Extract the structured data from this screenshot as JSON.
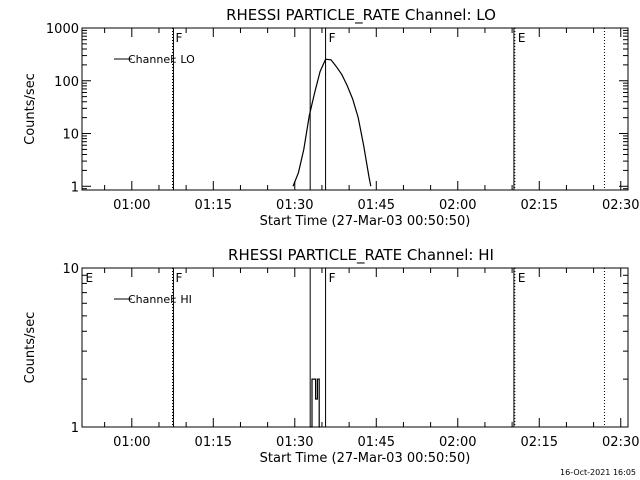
{
  "colors": {
    "background": "#ffffff",
    "foreground": "#000000"
  },
  "footer_timestamp": "16-Oct-2021 16:05",
  "chart_data": [
    {
      "type": "line",
      "title": "RHESSI PARTICLE_RATE Channel: LO",
      "xlabel": "Start Time (27-Mar-03 00:50:50)",
      "ylabel": "Counts/sec",
      "yscale": "log",
      "ylim": [
        0.85,
        1000
      ],
      "xlim": [
        "00:50:50",
        "02:31:20"
      ],
      "xticks": [
        "01:00",
        "01:15",
        "01:30",
        "01:45",
        "02:00",
        "02:15",
        "02:30"
      ],
      "yticks": [
        "1",
        "10",
        "100",
        "1000"
      ],
      "legend": "upper-left",
      "series": [
        {
          "name": "Channel: LO",
          "x": [
            "01:29:40",
            "01:30:40",
            "01:31:40",
            "01:32:40",
            "01:33:40",
            "01:34:40",
            "01:35:40",
            "01:36:40",
            "01:37:40",
            "01:38:40",
            "01:39:40",
            "01:40:40",
            "01:41:40",
            "01:42:40",
            "01:43:40",
            "01:44:00"
          ],
          "y": [
            1,
            1.8,
            5,
            22,
            60,
            150,
            255,
            250,
            185,
            130,
            80,
            45,
            20,
            6,
            1.5,
            1
          ]
        }
      ],
      "markers": [
        {
          "label": "F",
          "time": "01:07:30",
          "style": "dotted"
        },
        {
          "label": "F",
          "time": "01:35:40",
          "style": "solid"
        },
        {
          "label": "E",
          "time": "02:10:30",
          "style": "dotted"
        },
        {
          "label": "",
          "time": "02:27:00",
          "style": "dotted"
        }
      ],
      "saa_lines": [
        "01:07:40",
        "01:32:50",
        "01:35:40",
        "02:10:20"
      ]
    },
    {
      "type": "line",
      "title": "RHESSI PARTICLE_RATE Channel: HI",
      "xlabel": "Start Time (27-Mar-03 00:50:50)",
      "ylabel": "Counts/sec",
      "yscale": "log",
      "ylim": [
        1,
        10
      ],
      "xlim": [
        "00:50:50",
        "02:31:20"
      ],
      "xticks": [
        "01:00",
        "01:15",
        "01:30",
        "01:45",
        "02:00",
        "02:15",
        "02:30"
      ],
      "yticks": [
        "1",
        "10"
      ],
      "legend": "upper-left",
      "series": [
        {
          "name": "Channel: HI",
          "x": [
            "01:32:50",
            "01:33:10",
            "01:33:10",
            "01:33:50",
            "01:33:50",
            "01:34:10",
            "01:34:10",
            "01:34:30",
            "01:34:30",
            "01:34:40"
          ],
          "y": [
            1,
            1,
            2,
            2,
            1.5,
            1.5,
            2,
            2,
            1,
            1
          ]
        }
      ],
      "markers": [
        {
          "label": "E",
          "time": "00:50:55",
          "style": "none"
        },
        {
          "label": "F",
          "time": "01:07:30",
          "style": "dotted"
        },
        {
          "label": "F",
          "time": "01:35:40",
          "style": "solid"
        },
        {
          "label": "E",
          "time": "02:10:30",
          "style": "dotted"
        },
        {
          "label": "",
          "time": "02:27:00",
          "style": "dotted"
        }
      ],
      "saa_lines": [
        "01:07:40",
        "01:32:50",
        "01:35:40",
        "02:10:20"
      ]
    }
  ]
}
